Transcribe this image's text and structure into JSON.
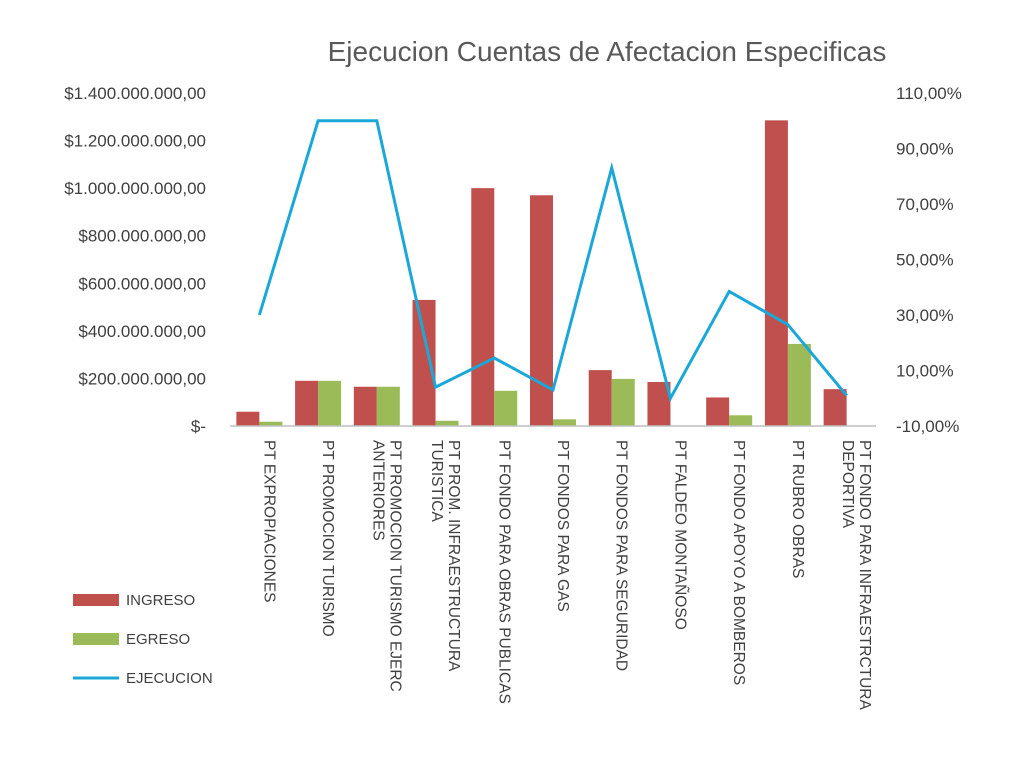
{
  "chart_data": {
    "type": "bar",
    "title": "Ejecucion Cuentas de Afectacion Especificas",
    "categories": [
      "PT EXPROPIACIONES",
      "PT PROMOCION TURISMO",
      "PT PROMOCION TURISMO EJERC ANTERIORES",
      "PT PROM. INFRAESTRUCTURA TURISTICA",
      "PT FONDO PARA OBRAS PUBLICAS",
      "PT FONDOS PARA GAS",
      "PT FONDOS PARA SEGURIDAD",
      "PT FALDEO MONTAÑOSO",
      "PT FONDO APOYO A BOMBEROS",
      "PT RUBRO OBRAS",
      "PT FONDO PARA INFRAESTRCTURA DEPORTIVA"
    ],
    "category_lines": [
      [
        "PT EXPROPIACIONES"
      ],
      [
        "PT PROMOCION TURISMO"
      ],
      [
        "PT PROMOCION TURISMO EJERC",
        "ANTERIORES"
      ],
      [
        "PT PROM. INFRAESTRUCTURA",
        "TURISTICA"
      ],
      [
        "PT FONDO PARA OBRAS PUBLICAS"
      ],
      [
        "PT FONDOS PARA GAS"
      ],
      [
        "PT FONDOS PARA SEGURIDAD"
      ],
      [
        "PT FALDEO MONTAÑOSO"
      ],
      [
        "PT FONDO APOYO A BOMBEROS"
      ],
      [
        "PT RUBRO OBRAS"
      ],
      [
        "PT FONDO PARA INFRAESTRCTURA",
        "DEPORTIVA"
      ]
    ],
    "series": [
      {
        "name": "INGRESO",
        "type": "bar",
        "axis": "left",
        "color": "#c0504d",
        "values": [
          60000000,
          190000000,
          165000000,
          530000000,
          1000000000,
          970000000,
          235000000,
          185000000,
          120000000,
          1285000000,
          155000000
        ]
      },
      {
        "name": "EGRESO",
        "type": "bar",
        "axis": "left",
        "color": "#9bbb59",
        "values": [
          18000000,
          190000000,
          165000000,
          22000000,
          148000000,
          28000000,
          198000000,
          0,
          45000000,
          345000000,
          0
        ]
      },
      {
        "name": "EJECUCION",
        "type": "line",
        "axis": "right",
        "color": "#1ba8d8",
        "values": [
          0.3,
          1.0,
          1.0,
          0.04,
          0.145,
          0.03,
          0.83,
          0.0,
          0.385,
          0.265,
          0.01
        ]
      }
    ],
    "y_left": {
      "lim": [
        0,
        1400000000
      ],
      "ticks": [
        "$-",
        "$200.000.000,00",
        "$400.000.000,00",
        "$600.000.000,00",
        "$800.000.000,00",
        "$1.000.000.000,00",
        "$1.200.000.000,00",
        "$1.400.000.000,00"
      ]
    },
    "y_right": {
      "lim": [
        -0.1,
        1.1
      ],
      "ticks": [
        "-10,00%",
        "10,00%",
        "30,00%",
        "50,00%",
        "70,00%",
        "90,00%",
        "110,00%"
      ]
    },
    "grid": false,
    "legend_position": "bottom-left",
    "axis_line_color": "#bfbfbf"
  }
}
